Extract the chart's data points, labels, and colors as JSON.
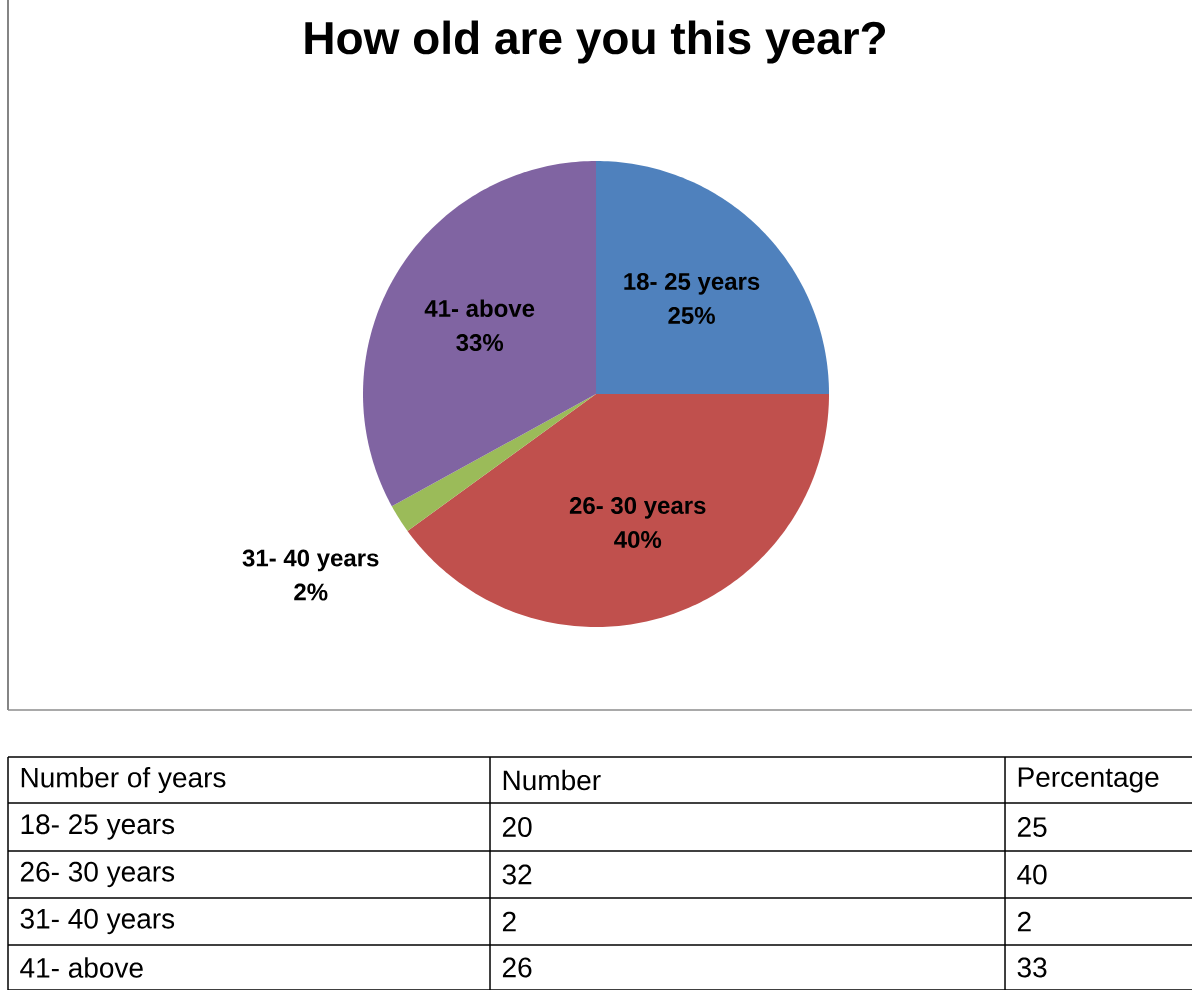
{
  "chart_data": {
    "type": "pie",
    "title": "How old are you this year?",
    "categories": [
      "18- 25 years",
      "26- 30 years",
      "31- 40 years",
      "41- above"
    ],
    "values": [
      25,
      40,
      2,
      33
    ],
    "colors": [
      "#4f81bd",
      "#c0504d",
      "#9bbb59",
      "#8064a2"
    ],
    "value_labels": [
      "25%",
      "40%",
      "2%",
      "33%"
    ],
    "annotations": [
      "Number of years",
      "Number",
      "Percentage",
      "20",
      "32",
      "2",
      "26",
      "25",
      "40",
      "2",
      "33"
    ]
  }
}
